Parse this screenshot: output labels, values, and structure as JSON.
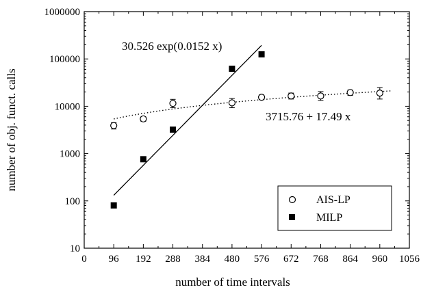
{
  "chart_data": {
    "type": "scatter",
    "xlabel": "number of time intervals",
    "ylabel": "number of obj. funct. calls",
    "xlim": [
      0,
      1056
    ],
    "ylim": [
      10,
      1000000
    ],
    "y_scale": "log",
    "x_ticks": [
      0,
      96,
      192,
      288,
      384,
      480,
      576,
      672,
      768,
      864,
      960,
      1056
    ],
    "y_ticks": [
      10,
      100,
      1000,
      10000,
      100000,
      1000000
    ],
    "x_tick_labels": [
      "0",
      "96",
      "192",
      "288",
      "384",
      "480",
      "576",
      "672",
      "768",
      "864",
      "960",
      "1056"
    ],
    "y_tick_labels": [
      "10",
      "100",
      "1000",
      "10000",
      "100000",
      "1000000"
    ],
    "grid": false,
    "legend_position": "bottom-right",
    "series": [
      {
        "name": "AIS-LP",
        "marker": "open-circle",
        "x": [
          96,
          192,
          288,
          480,
          576,
          672,
          768,
          864,
          960
        ],
        "y": [
          3900,
          5400,
          11500,
          11800,
          15500,
          16500,
          16500,
          19500,
          19000
        ],
        "y_err_low": [
          3300,
          4800,
          9300,
          9300,
          13800,
          14200,
          13300,
          17000,
          14200
        ],
        "y_err_high": [
          4500,
          6000,
          14000,
          14600,
          17300,
          19000,
          20400,
          22000,
          24800
        ]
      },
      {
        "name": "MILP",
        "marker": "filled-square",
        "x": [
          96,
          192,
          288,
          480,
          576
        ],
        "y": [
          80,
          760,
          3200,
          62000,
          125000
        ]
      }
    ],
    "fits": [
      {
        "series": "AIS-LP",
        "style": "dotted",
        "label": "3715.76 + 17.49 x",
        "intercept": 3715.76,
        "slope": 17.49,
        "x_range": [
          96,
          1000
        ]
      },
      {
        "series": "MILP",
        "style": "solid",
        "label": "30.526 exp(0.0152 x)",
        "coefficient": 30.526,
        "rate": 0.0152,
        "x_range": [
          96,
          576
        ]
      }
    ]
  }
}
